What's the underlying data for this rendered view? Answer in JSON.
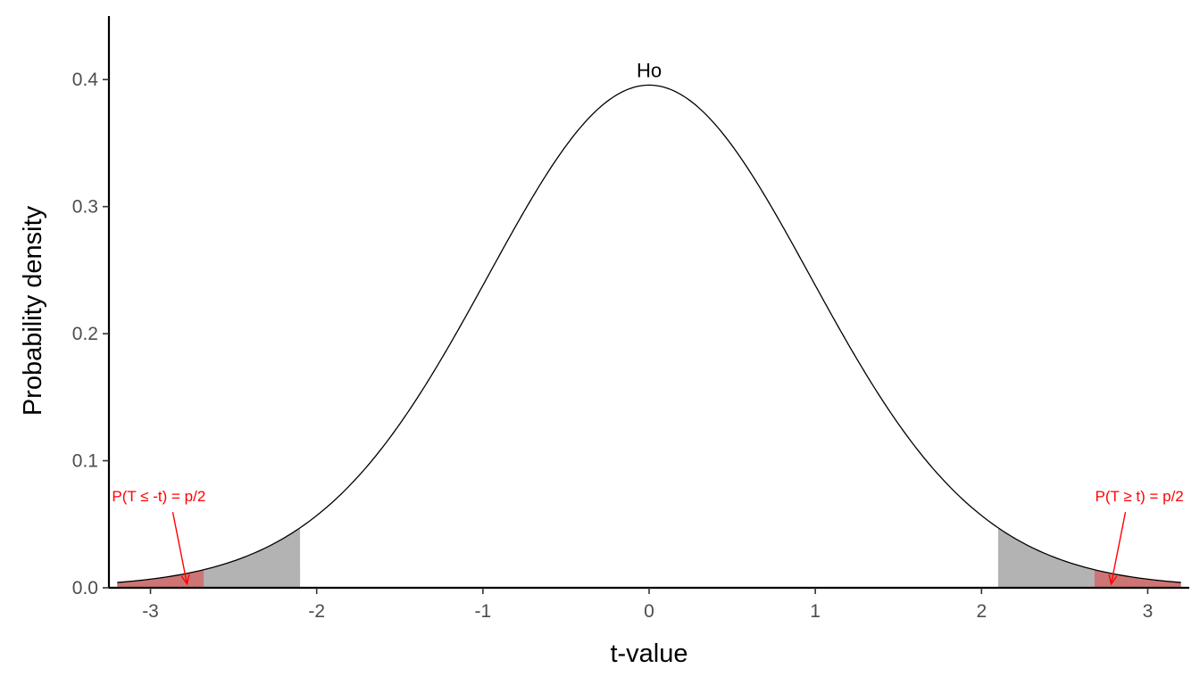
{
  "chart_data": {
    "type": "area",
    "title": "",
    "xlabel": "t-value",
    "ylabel": "Probability density",
    "xlim": [
      -3.25,
      3.25
    ],
    "ylim": [
      0,
      0.45
    ],
    "x_ticks": [
      -3,
      -2,
      -1,
      0,
      1,
      2,
      3
    ],
    "x_tick_labels": [
      "-3",
      "-2",
      "-1",
      "0",
      "1",
      "2",
      "3"
    ],
    "y_ticks": [
      0,
      0.1,
      0.2,
      0.3,
      0.4
    ],
    "y_tick_labels": [
      "0.0",
      "0.1",
      "0.2",
      "0.3",
      "0.4"
    ],
    "grid": false,
    "curve": {
      "distribution": "t",
      "degrees_of_freedom": 30,
      "x_range": [
        -3.2,
        3.2
      ],
      "peak_label": "Ho",
      "color": "#000000"
    },
    "shaded_regions": [
      {
        "name": "left critical region",
        "x_from": -3.2,
        "x_to": -2.1,
        "color": "#b3b3b3"
      },
      {
        "name": "right critical region",
        "x_from": 2.1,
        "x_to": 3.2,
        "color": "#b3b3b3"
      },
      {
        "name": "left p-value area",
        "x_from": -3.2,
        "x_to": -2.68,
        "color": "#cd7575"
      },
      {
        "name": "right p-value area",
        "x_from": 2.68,
        "x_to": 3.2,
        "color": "#cd7575"
      }
    ],
    "annotations": [
      {
        "text": "P(T ≤ -t) = p/2",
        "label_x": -2.95,
        "label_y": 0.068,
        "arrow_to_x": -2.78,
        "arrow_to_y": 0.003,
        "color": "#ff0000"
      },
      {
        "text": "P(T ≥ t) = p/2",
        "label_x": 2.95,
        "label_y": 0.068,
        "arrow_to_x": 2.78,
        "arrow_to_y": 0.003,
        "color": "#ff0000"
      }
    ]
  }
}
